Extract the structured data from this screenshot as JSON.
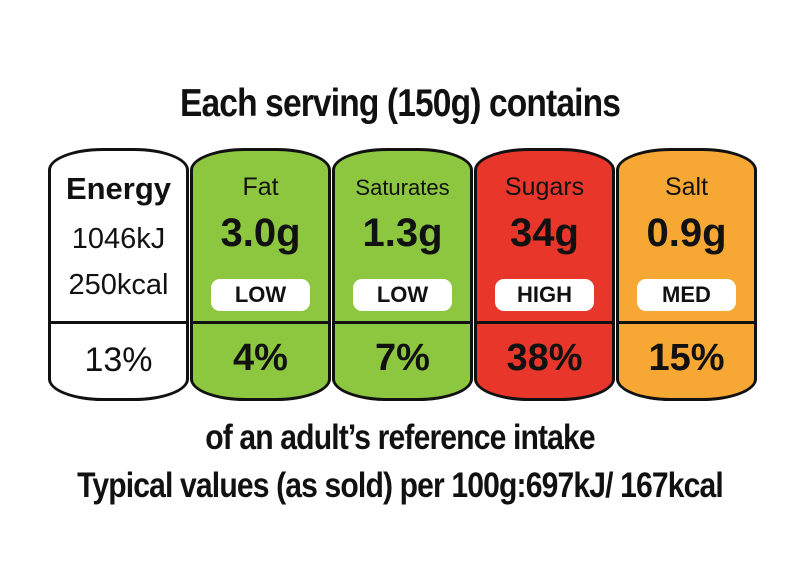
{
  "heading": "Each serving (150g) contains",
  "energy": {
    "label": "Energy",
    "kj": "1046kJ",
    "kcal": "250kcal",
    "percent": "13%",
    "color": "#ffffff"
  },
  "nutrients": [
    {
      "label": "Fat",
      "amount": "3.0g",
      "level": "LOW",
      "percent": "4%",
      "color": "#8dc63f"
    },
    {
      "label": "Saturates",
      "amount": "1.3g",
      "level": "LOW",
      "percent": "7%",
      "color": "#8dc63f"
    },
    {
      "label": "Sugars",
      "amount": "34g",
      "level": "HIGH",
      "percent": "38%",
      "color": "#e8362b"
    },
    {
      "label": "Salt",
      "amount": "0.9g",
      "level": "MED",
      "percent": "15%",
      "color": "#f7a733"
    }
  ],
  "footer": {
    "reference": "of an adult’s reference intake",
    "typical": "Typical values (as sold) per 100g:697kJ/ 167kcal"
  }
}
